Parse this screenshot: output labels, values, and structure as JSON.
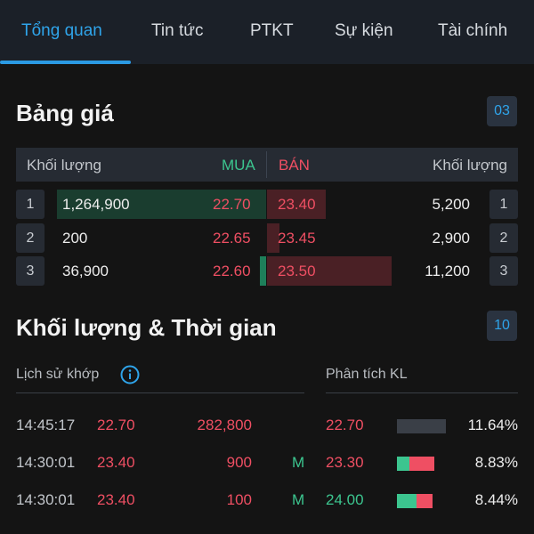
{
  "tabs": [
    "Tổng quan",
    "Tin tức",
    "PTKT",
    "Sự kiện",
    "Tài chính"
  ],
  "price_board": {
    "title": "Bảng giá",
    "badge": "03",
    "headers": {
      "buy_volume": "Khối lượng",
      "buy": "MUA",
      "sell": "BÁN",
      "sell_volume": "Khối lượng"
    },
    "rows": [
      {
        "index": "1",
        "buy_volume": "1,264,900",
        "buy_price": "22.70",
        "sell_price": "23.40",
        "sell_volume": "5,200",
        "sell_index": "1"
      },
      {
        "index": "2",
        "buy_volume": "200",
        "buy_price": "22.65",
        "sell_price": "23.45",
        "sell_volume": "2,900",
        "sell_index": "2"
      },
      {
        "index": "3",
        "buy_volume": "36,900",
        "buy_price": "22.60",
        "sell_price": "23.50",
        "sell_volume": "11,200",
        "sell_index": "3"
      }
    ]
  },
  "volume_time": {
    "title": "Khối lượng & Thời gian",
    "badge": "10",
    "history_label": "Lịch sử khớp",
    "analysis_label": "Phân tích KL",
    "trades": [
      {
        "time": "14:45:17",
        "price": "22.70",
        "volume": "282,800",
        "side": "",
        "a_price": "22.70",
        "a_pct": "11.64%"
      },
      {
        "time": "14:30:01",
        "price": "23.40",
        "volume": "900",
        "side": "M",
        "a_price": "23.30",
        "a_pct": "8.83%"
      },
      {
        "time": "14:30:01",
        "price": "23.40",
        "volume": "100",
        "side": "M",
        "a_price": "24.00",
        "a_pct": "8.44%"
      }
    ]
  },
  "colors": {
    "accent": "#2fa4ea",
    "buy": "#3cc58f",
    "sell": "#ef4f63",
    "background": "#141414"
  }
}
